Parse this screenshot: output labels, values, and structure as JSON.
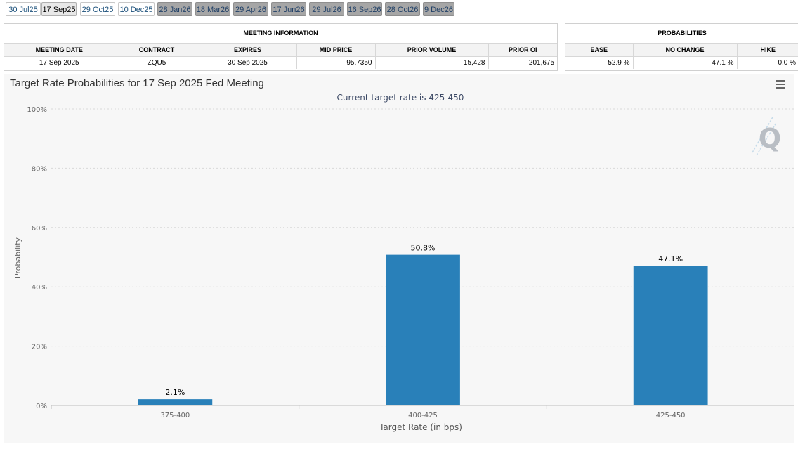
{
  "tabs": [
    {
      "label": "30 Jul25",
      "state": "active-light"
    },
    {
      "label": "17 Sep25",
      "state": "selected"
    },
    {
      "label": "29 Oct25",
      "state": "active-light"
    },
    {
      "label": "10 Dec25",
      "state": "active-light"
    },
    {
      "label": "28 Jan26",
      "state": "future"
    },
    {
      "label": "18 Mar26",
      "state": "future"
    },
    {
      "label": "29 Apr26",
      "state": "future"
    },
    {
      "label": "17 Jun26",
      "state": "future"
    },
    {
      "label": "29 Jul26",
      "state": "future"
    },
    {
      "label": "16 Sep26",
      "state": "future"
    },
    {
      "label": "28 Oct26",
      "state": "future"
    },
    {
      "label": "9 Dec26",
      "state": "future"
    }
  ],
  "meeting_info": {
    "caption": "MEETING INFORMATION",
    "headers": [
      "MEETING DATE",
      "CONTRACT",
      "EXPIRES",
      "MID PRICE",
      "PRIOR VOLUME",
      "PRIOR OI"
    ],
    "row": [
      "17 Sep 2025",
      "ZQU5",
      "30 Sep 2025",
      "95.7350",
      "15,428",
      "201,675"
    ]
  },
  "probabilities": {
    "caption": "PROBABILITIES",
    "headers": [
      "EASE",
      "NO CHANGE",
      "HIKE"
    ],
    "row": [
      "52.9 %",
      "47.1 %",
      "0.0 %"
    ]
  },
  "chart": {
    "menu_icon": "hamburger-menu-icon",
    "logo_icon": "q-logo-icon",
    "logo_letter": "Q"
  },
  "chart_data": {
    "type": "bar",
    "title": "Target Rate Probabilities for 17 Sep 2025 Fed Meeting",
    "subtitle": "Current target rate is 425-450",
    "xlabel": "Target Rate (in bps)",
    "ylabel": "Probability",
    "categories": [
      "375-400",
      "400-425",
      "425-450"
    ],
    "values": [
      2.1,
      50.8,
      47.1
    ],
    "data_labels": [
      "2.1%",
      "50.8%",
      "47.1%"
    ],
    "ylim": [
      0,
      100
    ],
    "yticks": [
      0,
      20,
      40,
      60,
      80,
      100
    ],
    "ytick_labels": [
      "0%",
      "20%",
      "40%",
      "60%",
      "80%",
      "100%"
    ],
    "grid": true,
    "bar_color": "#2980b9",
    "legend": "none"
  }
}
